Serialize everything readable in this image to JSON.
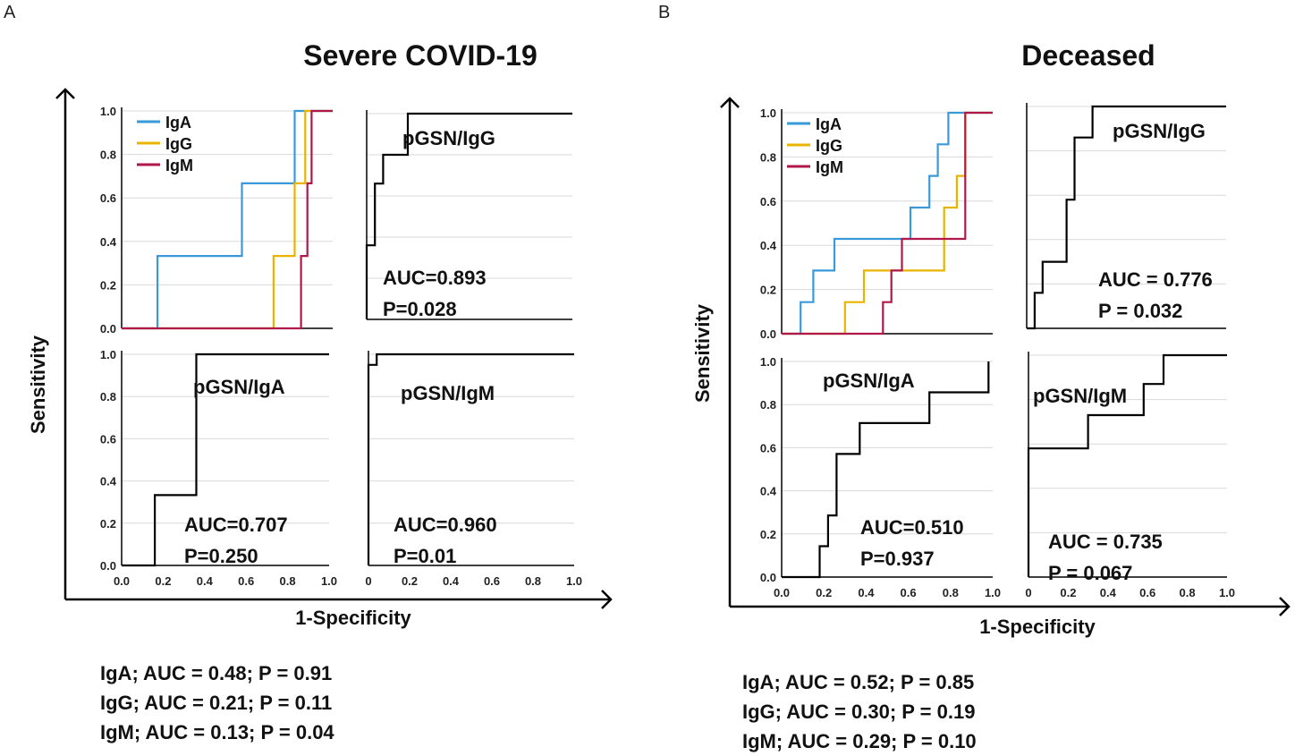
{
  "chart_data": [
    {
      "type": "line",
      "panel": "A",
      "title": "Severe COVID-19",
      "xlabel": "1-Specificity",
      "ylabel": "Sensitivity",
      "footer": [
        "IgA; AUC = 0.48; P = 0.91",
        "IgG; AUC = 0.21; P = 0.11",
        "IgM; AUC = 0.13; P = 0.04"
      ],
      "subplots": [
        {
          "id": "A-ig",
          "label": "",
          "legend": [
            "IgA",
            "IgG",
            "IgM"
          ],
          "xticks": [],
          "yticks": [
            "0.0",
            "0.2",
            "0.4",
            "0.6",
            "0.8",
            "1.0"
          ],
          "series": [
            {
              "name": "IgA",
              "color": "#3a9ad9",
              "x": [
                0,
                0.17,
                0.17,
                0.57,
                0.57,
                0.82,
                0.82,
                1.0
              ],
              "y": [
                0,
                0,
                0.333,
                0.333,
                0.667,
                0.667,
                1.0,
                1.0
              ]
            },
            {
              "name": "IgG",
              "color": "#e8b400",
              "x": [
                0,
                0.72,
                0.72,
                0.82,
                0.82,
                0.87,
                0.87,
                1.0
              ],
              "y": [
                0,
                0,
                0.333,
                0.333,
                0.667,
                0.667,
                1.0,
                1.0
              ]
            },
            {
              "name": "IgM",
              "color": "#b0174a",
              "x": [
                0,
                0.85,
                0.85,
                0.88,
                0.88,
                0.9,
                0.9,
                1.0
              ],
              "y": [
                0,
                0,
                0.333,
                0.333,
                0.667,
                0.667,
                1.0,
                1.0
              ]
            }
          ]
        },
        {
          "id": "A-igg",
          "label": "pGSN/IgG",
          "auc": "AUC=0.893",
          "p": "P=0.028",
          "xticks": [],
          "yticks": [],
          "series": [
            {
              "name": "pGSN/IgG",
              "color": "#000000",
              "x": [
                0,
                0,
                0.04,
                0.04,
                0.08,
                0.08,
                0.2,
                0.2,
                1.0
              ],
              "y": [
                0,
                0.36,
                0.36,
                0.66,
                0.66,
                0.8,
                0.8,
                1.0,
                1.0
              ]
            }
          ]
        },
        {
          "id": "A-iga",
          "label": "pGSN/IgA",
          "auc": "AUC=0.707",
          "p": "P=0.250",
          "xticks": [
            "0.0",
            "0.2",
            "0.4",
            "0.6",
            "0.8",
            "1.0"
          ],
          "yticks": [
            "0.0",
            "0.2",
            "0.4",
            "0.6",
            "0.8",
            "1.0"
          ],
          "series": [
            {
              "name": "pGSN/IgA",
              "color": "#000000",
              "x": [
                0,
                0.16,
                0.16,
                0.36,
                0.36,
                1.0
              ],
              "y": [
                0,
                0,
                0.333,
                0.333,
                1.0,
                1.0
              ]
            }
          ]
        },
        {
          "id": "A-igm",
          "label": "pGSN/IgM",
          "auc": "AUC=0.960",
          "p": "P=0.01",
          "xticks": [
            "0",
            "0.2",
            "0.4",
            "0.6",
            "0.8",
            "1.0"
          ],
          "yticks": [],
          "series": [
            {
              "name": "pGSN/IgM",
              "color": "#000000",
              "x": [
                0,
                0,
                0.04,
                0.04,
                1.0
              ],
              "y": [
                0,
                0.95,
                0.95,
                1.0,
                1.0
              ]
            }
          ]
        }
      ]
    },
    {
      "type": "line",
      "panel": "B",
      "title": "Deceased",
      "xlabel": "1-Specificity",
      "ylabel": "Sensitivity",
      "footer": [
        "IgA; AUC = 0.52; P = 0.85",
        "IgG; AUC = 0.30; P = 0.19",
        "IgM; AUC = 0.29; P = 0.10"
      ],
      "subplots": [
        {
          "id": "B-ig",
          "label": "",
          "legend": [
            "IgA",
            "IgG",
            "IgM"
          ],
          "xticks": [],
          "yticks": [
            "0.0",
            "0.2",
            "0.4",
            "0.6",
            "0.8",
            "1.0"
          ],
          "series": [
            {
              "name": "IgA",
              "color": "#3a9ad9",
              "x": [
                0,
                0.09,
                0.09,
                0.15,
                0.15,
                0.25,
                0.25,
                0.61,
                0.61,
                0.7,
                0.7,
                0.74,
                0.74,
                0.79,
                0.79,
                1.0
              ],
              "y": [
                0,
                0,
                0.143,
                0.143,
                0.286,
                0.286,
                0.429,
                0.429,
                0.571,
                0.571,
                0.714,
                0.714,
                0.857,
                0.857,
                1.0,
                1.0
              ]
            },
            {
              "name": "IgG",
              "color": "#e8b400",
              "x": [
                0,
                0.3,
                0.3,
                0.39,
                0.39,
                0.77,
                0.77,
                0.83,
                0.83,
                0.87,
                0.87,
                1.0
              ],
              "y": [
                0,
                0,
                0.143,
                0.143,
                0.286,
                0.286,
                0.571,
                0.571,
                0.714,
                0.714,
                1.0,
                1.0
              ]
            },
            {
              "name": "IgM",
              "color": "#b0174a",
              "x": [
                0,
                0.48,
                0.48,
                0.52,
                0.52,
                0.57,
                0.57,
                0.87,
                0.87,
                1.0
              ],
              "y": [
                0,
                0,
                0.143,
                0.143,
                0.286,
                0.286,
                0.429,
                0.429,
                1.0,
                1.0
              ]
            }
          ]
        },
        {
          "id": "B-igg",
          "label": "pGSN/IgG",
          "auc": "AUC = 0.776",
          "p": "P = 0.032",
          "xticks": [],
          "yticks": [],
          "series": [
            {
              "name": "pGSN/IgG",
              "color": "#000000",
              "x": [
                0,
                0.04,
                0.04,
                0.08,
                0.08,
                0.2,
                0.2,
                0.24,
                0.24,
                0.33,
                0.33,
                0.5,
                0.5,
                1.0
              ],
              "y": [
                0,
                0,
                0.16,
                0.16,
                0.3,
                0.3,
                0.58,
                0.58,
                0.86,
                0.86,
                1.0,
                1.0,
                1.0,
                1.0
              ]
            }
          ]
        },
        {
          "id": "B-iga",
          "label": "pGSN/IgA",
          "auc": "AUC=0.510",
          "p": "P=0.937",
          "xticks": [
            "0.0",
            "0.2",
            "0.4",
            "0.6",
            "0.8",
            "1.0"
          ],
          "yticks": [
            "0.0",
            "0.2",
            "0.4",
            "0.6",
            "0.8",
            "1.0"
          ],
          "series": [
            {
              "name": "pGSN/IgA",
              "color": "#000000",
              "x": [
                0,
                0.18,
                0.18,
                0.22,
                0.22,
                0.26,
                0.26,
                0.37,
                0.37,
                0.46,
                0.46,
                0.7,
                0.7,
                0.76,
                0.76,
                0.98,
                0.98
              ],
              "y": [
                0,
                0,
                0.143,
                0.143,
                0.286,
                0.286,
                0.571,
                0.571,
                0.714,
                0.714,
                0.714,
                0.714,
                0.857,
                0.857,
                0.857,
                0.857,
                1.0
              ]
            }
          ]
        },
        {
          "id": "B-igm",
          "label": "pGSN/IgM",
          "auc": "AUC = 0.735",
          "p": "P = 0.067",
          "xticks": [
            "0",
            "0.2",
            "0.4",
            "0.6",
            "0.8",
            "1.0"
          ],
          "yticks": [],
          "series": [
            {
              "name": "pGSN/IgM",
              "color": "#000000",
              "x": [
                0,
                0,
                0.04,
                0.3,
                0.3,
                0.58,
                0.58,
                0.68,
                0.68,
                1.0
              ],
              "y": [
                0,
                0.58,
                0.58,
                0.58,
                0.73,
                0.73,
                0.87,
                0.87,
                1.0,
                1.0
              ]
            }
          ]
        }
      ]
    }
  ]
}
